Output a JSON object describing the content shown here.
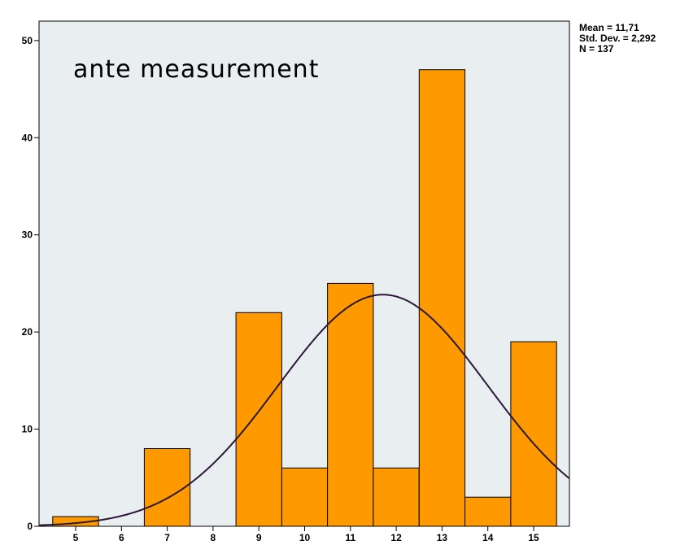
{
  "chart_data": {
    "type": "bar",
    "title": "ante measurement",
    "categories": [
      "5",
      "6",
      "7",
      "8",
      "9",
      "10",
      "11",
      "12",
      "13",
      "14",
      "15"
    ],
    "series": [
      {
        "values": [
          1,
          0,
          8,
          0,
          22,
          6,
          25,
          6,
          47,
          3,
          19
        ]
      }
    ],
    "normal_curve": {
      "mean": 11.71,
      "std_dev": 2.292,
      "n": 137
    },
    "yticks": [
      0,
      10,
      20,
      30,
      40,
      50
    ],
    "ylim": [
      0,
      52
    ],
    "xlim": [
      4.5,
      15.8
    ],
    "xlabel": "",
    "ylabel": "",
    "grid": false,
    "bar_color": "#ff9900",
    "curve_color": "#2b1838",
    "plot_bg": "#e9eff0",
    "stats_text": [
      "Mean = 11,71",
      "Std. Dev. = 2,292",
      "N = 137"
    ],
    "legend_placement": "top-right"
  }
}
